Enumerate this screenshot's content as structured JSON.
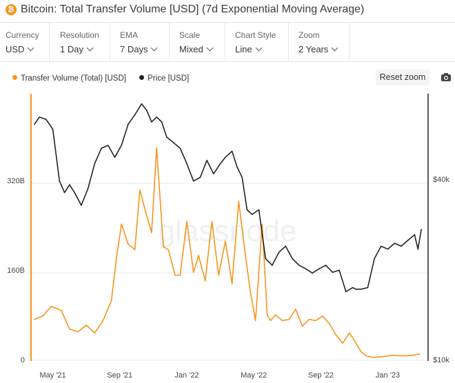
{
  "header": {
    "coin_symbol": "₿",
    "title": "Bitcoin: Total Transfer Volume [USD] (7d Exponential Moving Average)"
  },
  "controls": [
    {
      "label": "Currency",
      "value": "USD"
    },
    {
      "label": "Resolution",
      "value": "1 Day"
    },
    {
      "label": "EMA",
      "value": "7 Days"
    },
    {
      "label": "Scale",
      "value": "Mixed"
    },
    {
      "label": "Chart Style",
      "value": "Line"
    },
    {
      "label": "Zoom",
      "value": "2 Years"
    }
  ],
  "toolbar": {
    "reset_zoom_label": "Reset zoom",
    "camera_icon": "camera-icon"
  },
  "watermark": "glassnode",
  "colors": {
    "volume": "#f7931a",
    "price": "#222222",
    "grid": "#e9e9e9"
  },
  "chart_data": {
    "type": "line",
    "title": "Bitcoin: Total Transfer Volume [USD] (7d Exponential Moving Average)",
    "x_tick_labels": [
      "May '21",
      "Sep '21",
      "Jan '22",
      "May '22",
      "Sep '22",
      "Jan '23"
    ],
    "y_left_ticks": [
      "0",
      "160B",
      "320B"
    ],
    "y_right_ticks": [
      "$10k",
      "$40k"
    ],
    "x_range_months": [
      0,
      23.5
    ],
    "y_left_range_B": [
      0,
      470
    ],
    "y_right_scale": "log",
    "y_right_range_usd": [
      10000,
      70000
    ],
    "series": [
      {
        "name": "Transfer Volume (Total) [USD]",
        "axis": "left",
        "unit": "B USD",
        "x_months": [
          0.2,
          0.7,
          1.2,
          1.8,
          2.3,
          2.8,
          3.3,
          3.8,
          4.3,
          4.8,
          5.1,
          5.4,
          5.8,
          6.2,
          6.5,
          6.9,
          7.2,
          7.5,
          7.9,
          8.2,
          8.6,
          8.9,
          9.3,
          9.7,
          10.0,
          10.4,
          10.8,
          11.2,
          11.6,
          12.0,
          12.4,
          12.8,
          13.1,
          13.4,
          13.8,
          14.1,
          14.3,
          14.6,
          15.0,
          15.4,
          15.8,
          16.2,
          16.6,
          17.0,
          17.4,
          17.8,
          18.2,
          18.6,
          19.0,
          19.3,
          19.7,
          20.0,
          20.4,
          20.8,
          21.2,
          21.6,
          22.0,
          22.4,
          22.8,
          23.2
        ],
        "values": [
          72,
          78,
          95,
          88,
          55,
          50,
          62,
          48,
          70,
          105,
          180,
          240,
          205,
          195,
          300,
          255,
          225,
          375,
          200,
          195,
          150,
          150,
          245,
          155,
          185,
          140,
          245,
          150,
          210,
          135,
          280,
          185,
          120,
          70,
          240,
          80,
          70,
          80,
          70,
          72,
          90,
          60,
          72,
          70,
          78,
          65,
          45,
          30,
          48,
          35,
          15,
          8,
          5,
          6,
          7,
          9,
          8,
          8,
          9,
          11
        ]
      },
      {
        "name": "Price [USD]",
        "axis": "right",
        "unit": "USD",
        "x_months": [
          0.2,
          0.5,
          0.9,
          1.3,
          1.7,
          2.0,
          2.3,
          2.6,
          3.0,
          3.4,
          3.8,
          4.2,
          4.6,
          5.0,
          5.4,
          5.8,
          6.2,
          6.6,
          6.9,
          7.2,
          7.5,
          7.8,
          8.1,
          8.5,
          8.9,
          9.3,
          9.7,
          10.1,
          10.5,
          10.9,
          11.3,
          11.6,
          12.0,
          12.3,
          12.6,
          12.9,
          13.2,
          13.6,
          14.0,
          14.4,
          14.8,
          15.2,
          15.6,
          16.0,
          16.4,
          16.8,
          17.2,
          17.6,
          18.0,
          18.4,
          18.8,
          19.2,
          19.4,
          19.7,
          20.1,
          20.5,
          20.9,
          21.3,
          21.7,
          22.1,
          22.5,
          22.9,
          23.1,
          23.3
        ],
        "values": [
          56000,
          59000,
          58000,
          54000,
          37000,
          34000,
          36000,
          34000,
          31000,
          35000,
          42000,
          47000,
          48000,
          44000,
          48000,
          56000,
          60000,
          65000,
          62000,
          57000,
          59000,
          57000,
          51000,
          49000,
          47000,
          42000,
          37000,
          38000,
          43000,
          39000,
          42000,
          44000,
          46000,
          41000,
          38000,
          30000,
          29000,
          30000,
          21000,
          20000,
          22000,
          23000,
          21000,
          20000,
          19500,
          18900,
          19500,
          20000,
          19000,
          19300,
          16500,
          17000,
          16800,
          16800,
          17000,
          21000,
          23000,
          22500,
          23500,
          23000,
          24000,
          25000,
          22500,
          26000
        ]
      }
    ]
  }
}
